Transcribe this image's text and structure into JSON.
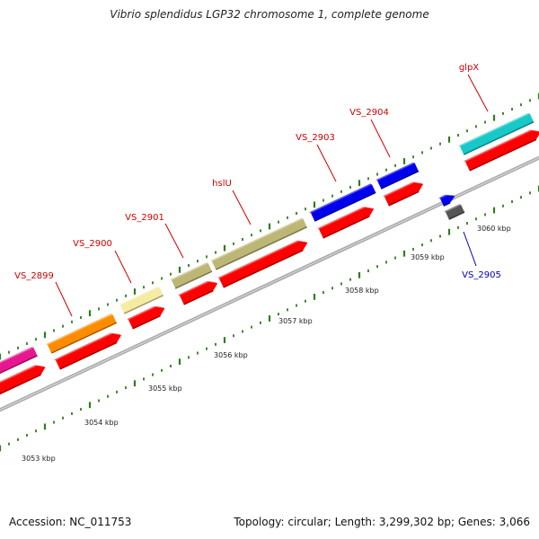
{
  "title": "Vibrio splendidus LGP32 chromosome 1, complete genome",
  "footer": {
    "accession": "Accession: NC_011753",
    "summary": "Topology: circular; Length: 3,299,302 bp; Genes: 3,066"
  },
  "colors": {
    "gene_label": "#cc0000",
    "reverse_label": "#0000aa",
    "backbone": "#a8a8a8",
    "tick": "#2e7d1e",
    "cds": "#ff0000"
  },
  "scale": {
    "unit": "kbp",
    "kbp_labels": [
      "3053 kbp",
      "3054 kbp",
      "3055 kbp",
      "3056 kbp",
      "3057 kbp",
      "3058 kbp",
      "3059 kbp",
      "3060 kbp"
    ]
  },
  "genes": [
    {
      "label": "",
      "color": "#e8178f",
      "strand": "+"
    },
    {
      "label": "VS_2899",
      "color": "#ff8c00",
      "strand": "+"
    },
    {
      "label": "VS_2900",
      "color": "#f5eba3",
      "strand": "+"
    },
    {
      "label": "VS_2901",
      "color": "#bdb776",
      "strand": "+"
    },
    {
      "label": "hslU",
      "color": "#bdb776",
      "strand": "+"
    },
    {
      "label": "VS_2903",
      "color": "#0000ee",
      "strand": "+"
    },
    {
      "label": "VS_2904",
      "color": "#0000ee",
      "strand": "+"
    },
    {
      "label": "glpX",
      "color": "#17c8c8",
      "strand": "+"
    },
    {
      "label": "VS_2905",
      "color": "#0000ee",
      "strand": "-"
    }
  ]
}
